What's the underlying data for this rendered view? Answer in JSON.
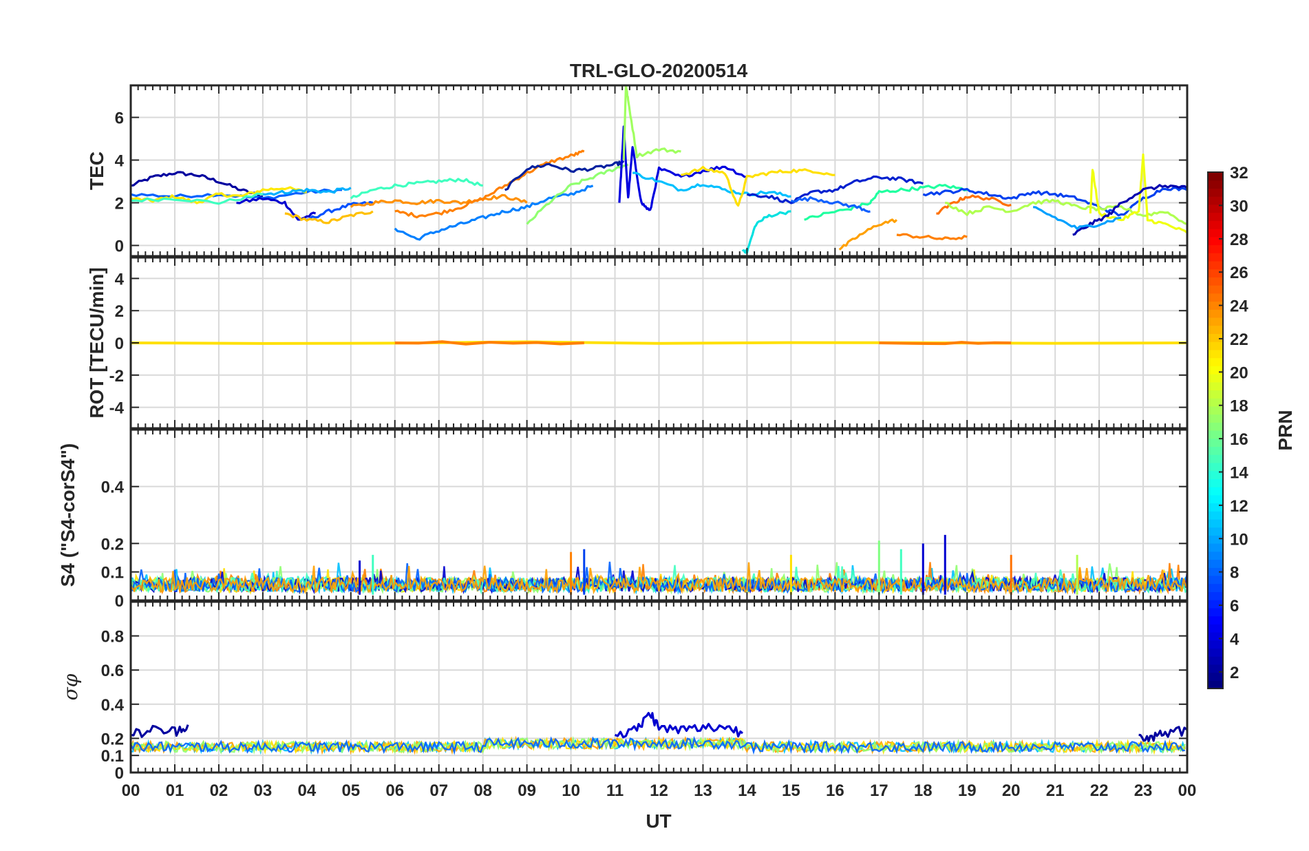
{
  "chart_data": [
    {
      "type": "line",
      "title": "TRL-GLO-20200514",
      "ylabel": "TEC",
      "ylim": [
        -0.5,
        7.5
      ],
      "yticks": [
        0,
        2,
        4,
        6
      ],
      "xlim": [
        0,
        24
      ],
      "series": [
        {
          "color": "#00009f",
          "x": [
            0,
            0.5,
            1,
            1.5,
            2,
            2.5,
            3
          ],
          "y": [
            2.8,
            3.2,
            3.4,
            3.3,
            3.0,
            2.6,
            2.3
          ]
        },
        {
          "color": "#0060ff",
          "x": [
            0,
            1,
            2,
            3,
            4,
            4.8
          ],
          "y": [
            2.4,
            2.3,
            2.4,
            2.2,
            2.5,
            2.6
          ]
        },
        {
          "color": "#ffe800",
          "x": [
            0,
            0.5,
            1,
            1.5,
            2,
            2.5,
            3,
            3.5,
            4
          ],
          "y": [
            2.2,
            2.1,
            2.3,
            2.0,
            2.4,
            2.3,
            2.6,
            2.7,
            2.5
          ]
        },
        {
          "color": "#40ffc0",
          "x": [
            0,
            1,
            2,
            3
          ],
          "y": [
            2.1,
            2.2,
            2.0,
            2.4
          ]
        },
        {
          "color": "#0000cf",
          "x": [
            2.4,
            3,
            3.5,
            3.8,
            4.2
          ],
          "y": [
            2.0,
            2.2,
            2.0,
            1.2,
            1.5
          ]
        },
        {
          "color": "#0050ff",
          "x": [
            4,
            4.5,
            5,
            5.5
          ],
          "y": [
            1.2,
            1.6,
            1.9,
            2.0
          ]
        },
        {
          "color": "#ffc000",
          "x": [
            3.5,
            4,
            4.5,
            5,
            5.5
          ],
          "y": [
            1.5,
            1.2,
            1.1,
            1.4,
            1.6
          ]
        },
        {
          "color": "#00b0ff",
          "x": [
            3,
            3.5,
            4,
            4.5,
            5
          ],
          "y": [
            2.4,
            2.5,
            2.6,
            2.5,
            2.7
          ]
        },
        {
          "color": "#40ffc0",
          "x": [
            5,
            5.5,
            6,
            6.5,
            7,
            7.5,
            8
          ],
          "y": [
            2.2,
            2.6,
            2.8,
            2.9,
            3.0,
            3.1,
            2.8
          ]
        },
        {
          "color": "#ff9000",
          "x": [
            5,
            5.5,
            6,
            6.5,
            7,
            7.5,
            8,
            8.5,
            9
          ],
          "y": [
            1.8,
            2.0,
            2.1,
            2.0,
            2.1,
            2.0,
            2.2,
            2.3,
            2.0
          ]
        },
        {
          "color": "#0080ff",
          "x": [
            6,
            6.5,
            7,
            7.5,
            8,
            8.5,
            9,
            9.5,
            10,
            10.5
          ],
          "y": [
            0.8,
            0.3,
            0.7,
            1.0,
            1.3,
            1.6,
            1.8,
            2.2,
            2.4,
            2.8
          ]
        },
        {
          "color": "#ff8000",
          "x": [
            6,
            6.5,
            7,
            7.5,
            8,
            8.5,
            9,
            9.5,
            10,
            10.3
          ],
          "y": [
            1.6,
            1.4,
            1.5,
            1.8,
            2.2,
            2.8,
            3.4,
            3.9,
            4.2,
            4.4
          ]
        },
        {
          "color": "#00209f",
          "x": [
            8.5,
            9,
            9.5,
            10,
            10.5,
            11,
            11.2
          ],
          "y": [
            2.6,
            3.6,
            3.8,
            3.5,
            3.6,
            3.8,
            3.9
          ]
        },
        {
          "color": "#90ff70",
          "x": [
            9,
            9.5,
            10,
            10.5,
            11,
            11.3
          ],
          "y": [
            1.0,
            2.0,
            2.8,
            3.2,
            3.6,
            3.8
          ]
        },
        {
          "color": "#0000df",
          "x": [
            11.1,
            11.2,
            11.3,
            11.4,
            11.6,
            11.8,
            12,
            12.5,
            13,
            13.5,
            14
          ],
          "y": [
            2.0,
            5.5,
            2.2,
            4.6,
            2.0,
            1.6,
            3.6,
            3.2,
            3.5,
            3.7,
            3.2
          ]
        },
        {
          "color": "#a0ff60",
          "x": [
            11.2,
            11.25,
            11.3,
            11.5,
            12,
            12.5
          ],
          "y": [
            4.0,
            7.5,
            6.8,
            4.2,
            4.5,
            4.4
          ]
        },
        {
          "color": "#00c0ff",
          "x": [
            11.4,
            12,
            12.5,
            13,
            13.5,
            14,
            14.5,
            15
          ],
          "y": [
            3.4,
            3.0,
            2.6,
            2.9,
            2.6,
            2.4,
            2.5,
            2.3
          ]
        },
        {
          "color": "#ffe000",
          "x": [
            12.5,
            13,
            13.5,
            13.8,
            14,
            14.5,
            15,
            15.5,
            16
          ],
          "y": [
            3.3,
            3.6,
            3.4,
            1.8,
            3.2,
            3.4,
            3.5,
            3.5,
            3.3
          ]
        },
        {
          "color": "#0020cf",
          "x": [
            14,
            14.5,
            15,
            15.5,
            16,
            16.5,
            17,
            17.5,
            18
          ],
          "y": [
            2.4,
            2.3,
            2.0,
            2.5,
            2.6,
            3.0,
            3.2,
            3.1,
            2.9
          ]
        },
        {
          "color": "#00e0e0",
          "x": [
            13.9,
            14,
            14.2,
            14.5,
            15
          ],
          "y": [
            -0.2,
            -0.3,
            1.0,
            1.4,
            1.6
          ]
        },
        {
          "color": "#20ffa0",
          "x": [
            15.3,
            15.8,
            16.3,
            16.8,
            17,
            17.5,
            18,
            18.5,
            19
          ],
          "y": [
            1.2,
            1.5,
            1.7,
            2.0,
            2.5,
            2.6,
            2.7,
            2.8,
            2.6
          ]
        },
        {
          "color": "#1060ff",
          "x": [
            15,
            15.5,
            16,
            16.5,
            16.8
          ],
          "y": [
            2.1,
            2.2,
            2.0,
            1.8,
            1.6
          ]
        },
        {
          "color": "#ffa000",
          "x": [
            16.1,
            16.5,
            17,
            17.4
          ],
          "y": [
            -0.2,
            0.4,
            1.0,
            1.2
          ]
        },
        {
          "color": "#ff8000",
          "x": [
            17.4,
            18,
            18.5,
            19
          ],
          "y": [
            0.5,
            0.4,
            0.3,
            0.4
          ]
        },
        {
          "color": "#ff7000",
          "x": [
            18.3,
            18.7,
            19,
            19.5,
            20
          ],
          "y": [
            1.5,
            2.0,
            2.3,
            2.2,
            1.9
          ]
        },
        {
          "color": "#0040ef",
          "x": [
            18,
            18.5,
            19,
            19.5,
            20,
            20.5,
            21,
            21.5,
            22,
            22.5,
            23,
            23.5,
            24
          ],
          "y": [
            2.4,
            2.5,
            2.6,
            2.4,
            2.2,
            2.5,
            2.4,
            2.2,
            1.8,
            1.4,
            2.2,
            2.7,
            2.6
          ]
        },
        {
          "color": "#b0ff50",
          "x": [
            18.5,
            19,
            19.5,
            20,
            20.5,
            21,
            21.5,
            22,
            22.5,
            23,
            23.5,
            24
          ],
          "y": [
            2.0,
            1.5,
            1.8,
            1.6,
            2.0,
            2.1,
            1.8,
            1.7,
            1.8,
            1.4,
            1.6,
            1.0
          ]
        },
        {
          "color": "#f0ff10",
          "x": [
            21.8,
            21.85,
            22,
            22.5,
            22.9,
            23,
            23.1,
            23.5,
            24
          ],
          "y": [
            1.5,
            3.6,
            1.5,
            1.2,
            1.6,
            4.2,
            1.2,
            1.0,
            0.6
          ]
        },
        {
          "color": "#0000af",
          "x": [
            21.4,
            21.8,
            22.2,
            22.5,
            23,
            23.5,
            24
          ],
          "y": [
            0.5,
            1.0,
            1.4,
            2.0,
            2.6,
            2.8,
            2.7
          ]
        },
        {
          "color": "#00a0ff",
          "x": [
            20.5,
            21,
            21.5,
            22,
            22.5
          ],
          "y": [
            1.8,
            1.3,
            0.8,
            1.0,
            1.3
          ]
        }
      ]
    },
    {
      "type": "line",
      "ylabel": "ROT [TECU/min]",
      "ylim": [
        -5.3,
        5.3
      ],
      "yticks": [
        -4,
        -2,
        0,
        2,
        4
      ],
      "xlim": [
        0,
        24
      ],
      "series": [
        {
          "color": "#ffe000",
          "x": [
            0,
            24
          ],
          "y": [
            0,
            0
          ]
        },
        {
          "color": "#ff8000",
          "x": [
            6,
            10.3
          ],
          "y": [
            0,
            0
          ]
        },
        {
          "color": "#ff8000",
          "x": [
            17,
            20
          ],
          "y": [
            0,
            0
          ]
        }
      ]
    },
    {
      "type": "line",
      "ylabel": "S4 (\"S4-corS4\")",
      "ylim": [
        0,
        0.6
      ],
      "yticks": [
        0,
        0.1,
        0.2,
        0.4
      ],
      "xlim": [
        0,
        24
      ],
      "spikes": [
        {
          "x": 5.2,
          "y": 0.14,
          "color": "#0000cf"
        },
        {
          "x": 5.5,
          "y": 0.16,
          "color": "#40ffc0"
        },
        {
          "x": 10.0,
          "y": 0.17,
          "color": "#ff8000"
        },
        {
          "x": 10.3,
          "y": 0.18,
          "color": "#0040ef"
        },
        {
          "x": 15.0,
          "y": 0.16,
          "color": "#ffe000"
        },
        {
          "x": 17.0,
          "y": 0.21,
          "color": "#80ff80"
        },
        {
          "x": 17.5,
          "y": 0.18,
          "color": "#40ffc0"
        },
        {
          "x": 18.0,
          "y": 0.2,
          "color": "#0000cf"
        },
        {
          "x": 18.5,
          "y": 0.23,
          "color": "#0000cf"
        },
        {
          "x": 20.0,
          "y": 0.16,
          "color": "#ff7000"
        },
        {
          "x": 21.5,
          "y": 0.16,
          "color": "#b0ff50"
        }
      ]
    },
    {
      "type": "line",
      "ylabel": "σφ",
      "ylim": [
        0,
        1.0
      ],
      "yticks": [
        0,
        0.1,
        0.2,
        0.4,
        0.6,
        0.8
      ],
      "xlim": [
        0,
        24
      ],
      "series": [
        {
          "color": "#00009f",
          "x": [
            0,
            0.5,
            1,
            1.3
          ],
          "y": [
            0.22,
            0.25,
            0.24,
            0.28
          ]
        },
        {
          "color": "#0000cf",
          "x": [
            11,
            11.5,
            11.8,
            12,
            12.5,
            13,
            13.5,
            13.9
          ],
          "y": [
            0.22,
            0.25,
            0.35,
            0.26,
            0.25,
            0.26,
            0.27,
            0.23
          ]
        },
        {
          "color": "#00009f",
          "x": [
            22.9,
            23.2,
            23.5,
            24
          ],
          "y": [
            0.22,
            0.21,
            0.22,
            0.25
          ]
        }
      ]
    }
  ],
  "xaxis": {
    "label": "UT",
    "ticks": [
      "00",
      "01",
      "02",
      "03",
      "04",
      "05",
      "06",
      "07",
      "08",
      "09",
      "10",
      "11",
      "12",
      "13",
      "14",
      "15",
      "16",
      "17",
      "18",
      "19",
      "20",
      "21",
      "22",
      "23",
      "00"
    ]
  },
  "colorbar": {
    "label": "PRN",
    "min": 1,
    "max": 32,
    "ticks": [
      2,
      4,
      6,
      8,
      10,
      12,
      14,
      16,
      18,
      20,
      22,
      24,
      26,
      28,
      30,
      32
    ],
    "colormap": "jet"
  }
}
